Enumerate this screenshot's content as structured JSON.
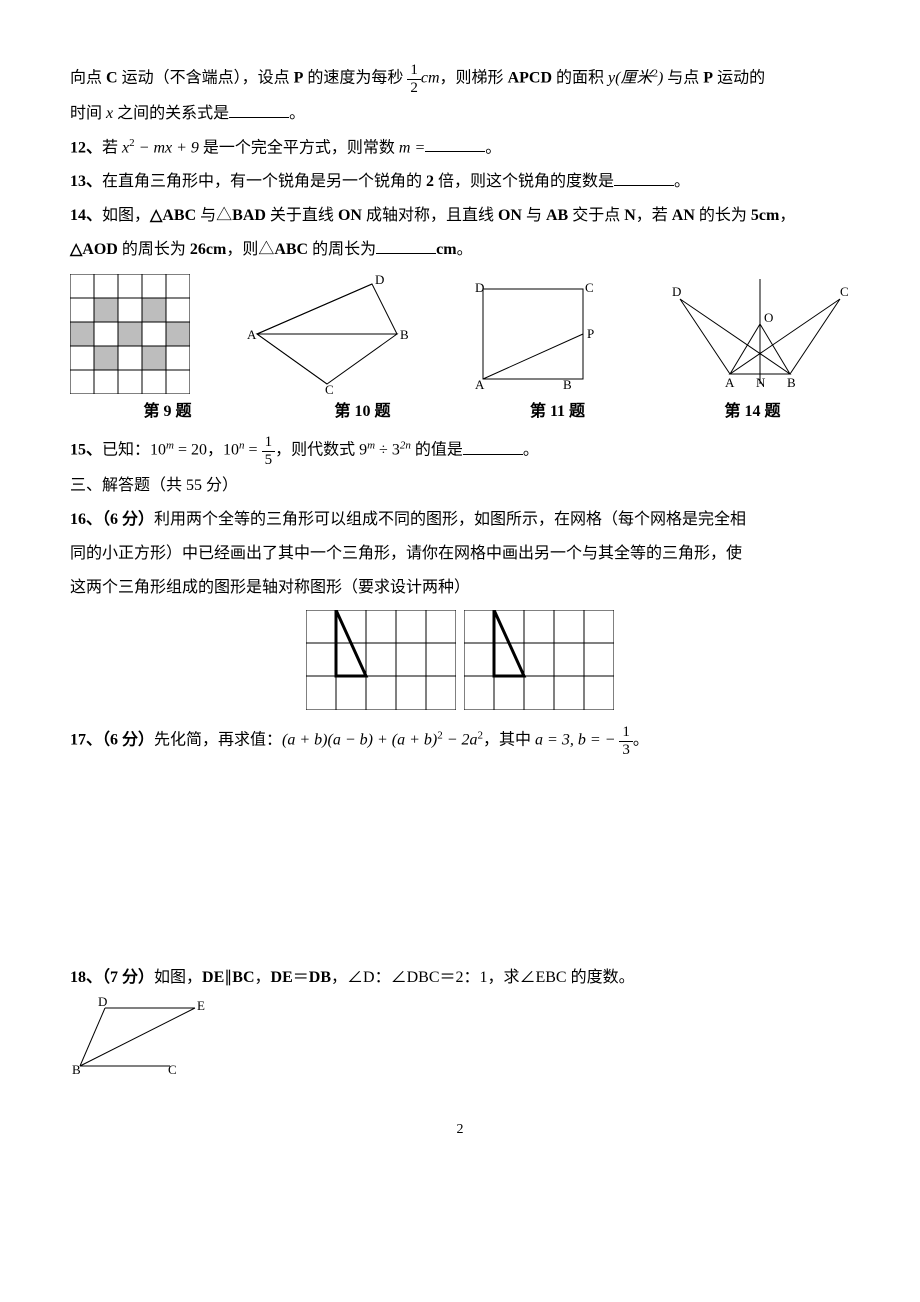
{
  "q11_cont": {
    "part1": "向点 ",
    "c_bold": "C",
    "part2": " 运动（不含端点），设点 ",
    "p_bold": "P",
    "part3": " 的速度为每秒 ",
    "frac_num": "1",
    "frac_den": "2",
    "unit": "cm",
    "part4": "，则梯形 ",
    "apcd_bold": "APCD",
    "part5": " 的面积 ",
    "yexpr": "y(厘米",
    "yexp": "2",
    "yexpr2": ")",
    "part6": " 与点 ",
    "p2_bold": "P",
    "part7": " 运动的",
    "line2_a": "时间 ",
    "line2_x": "x",
    "line2_b": " 之间的关系式是",
    "period": "。"
  },
  "q12": {
    "prefix": "12、",
    "a": "若 ",
    "expr": "x",
    "exp2": "2",
    "mid": " − mx + 9",
    "b": " 是一个完全平方式，则常数 ",
    "m": "m =",
    "period": "。"
  },
  "q13": {
    "prefix": "13、",
    "text_a": "在直角三角形中，有一个锐角是另一个锐角的 ",
    "two_bold": "2",
    "text_b": " 倍，则这个锐角的度数是",
    "period": "。"
  },
  "q14": {
    "prefix": "14、",
    "a": "如图，",
    "tri": "△ABC",
    "b": " 与△",
    "bad": "BAD",
    "c": " 关于直线 ",
    "on1": "ON",
    "d": " 成轴对称，且直线 ",
    "on2": "ON",
    "e": " 与 ",
    "ab": "AB",
    "f": " 交于点 ",
    "n": "N",
    "g": "，若 ",
    "an": "AN",
    "h": " 的长为 ",
    "five": "5cm",
    "comma": "，",
    "line2_a": "△AOD",
    "line2_b": " 的周长为 ",
    "tw": "26cm",
    "line2_c": "，则△",
    "abc": "ABC",
    "line2_d": " 的周长为",
    "cm": "cm",
    "period": "。"
  },
  "captions": {
    "c9": "第 9 题",
    "c10": "第 10 题",
    "c11": "第 11 题",
    "c14": "第 14 题"
  },
  "q15": {
    "prefix": "15、",
    "a": "已知：",
    "e1": "10",
    "m": "m",
    "eq1": " = 20",
    "comma": "，",
    "e2": "10",
    "n": "n",
    "eq2_a": " = ",
    "fnum": "1",
    "fden": "5",
    "b": "，则代数式 ",
    "nine": "9",
    "mexp": "m",
    "div": " ÷ 3",
    "exp2n": "2n",
    "c": " 的值是",
    "period": "。"
  },
  "sec3": "三、解答题（共 55 分）",
  "q16": {
    "prefix": "16、",
    "pts": "（6 分）",
    "t1": "利用两个全等的三角形可以组成不同的图形，如图所示，在网格（每个网格是完全相",
    "t2": "同的小正方形）中已经画出了其中一个三角形，请你在网格中画出另一个与其全等的三角形，使",
    "t3": "这两个三角形组成的图形是轴对称图形（要求设计两种）"
  },
  "q17": {
    "prefix": "17、",
    "pts": "（6 分）",
    "a": "先化简，再求值：",
    "expr": "(a + b)(a − b) + (a + b)",
    "sq": "2",
    "expr2": " − 2a",
    "sq2": "2",
    "b": "，其中 ",
    "av": "a = 3,",
    "sp": "  ",
    "bv": "b = − ",
    "fn": "1",
    "fd": "3",
    "period": "。"
  },
  "q18": {
    "prefix": "18、",
    "pts": "（7 分）",
    "a": "如图，",
    "de": "DE",
    "par": "∥",
    "bc": "BC",
    "comma": "，",
    "de2": "DE",
    "eq": "＝",
    "db": "DB",
    "comma2": "，",
    "ang": "∠D：∠DBC＝2：1，求∠EBC 的度数。"
  },
  "pageno": "2",
  "fig9": {
    "fill": "#bdbdbd",
    "stroke": "#000",
    "cells": [
      [
        1,
        1
      ],
      [
        3,
        1
      ],
      [
        0,
        2
      ],
      [
        2,
        2
      ],
      [
        4,
        2
      ],
      [
        1,
        3
      ],
      [
        3,
        3
      ]
    ]
  },
  "fig10": {
    "A": "A",
    "B": "B",
    "C": "C",
    "D": "D"
  },
  "fig11": {
    "A": "A",
    "B": "B",
    "C": "C",
    "D": "D",
    "P": "P"
  },
  "fig14": {
    "A": "A",
    "B": "B",
    "C": "C",
    "D": "D",
    "O": "O",
    "N": "N"
  },
  "fig18": {
    "B": "B",
    "C": "C",
    "D": "D",
    "E": "E"
  }
}
